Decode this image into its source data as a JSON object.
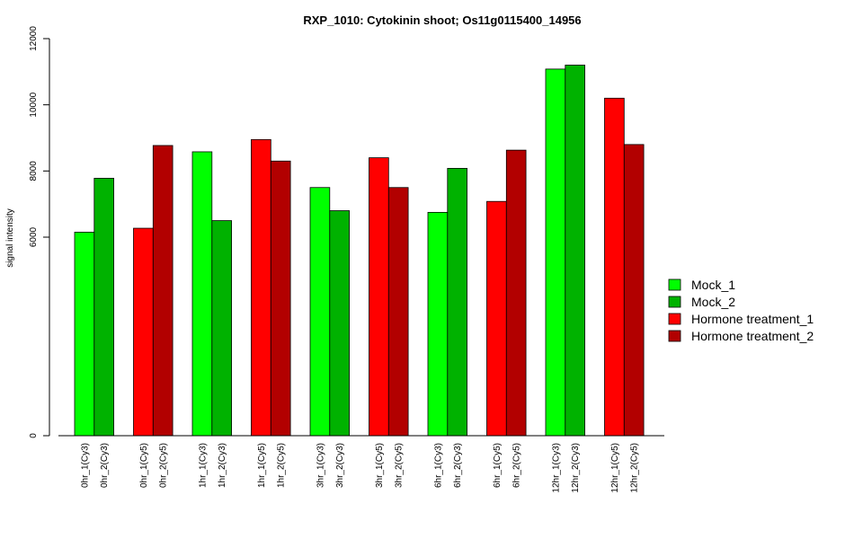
{
  "chart_data": {
    "type": "bar",
    "title": "RXP_1010: Cytokinin shoot; Os11g0115400_14956",
    "ylabel": "signal intensity",
    "xlabel": "",
    "ylim": [
      0,
      12000
    ],
    "y_ticks": [
      0,
      6000,
      8000,
      10000,
      12000
    ],
    "categories": [
      "0hr_1(Cy3)",
      "0hr_2(Cy3)",
      "0hr_1(Cy5)",
      "0hr_2(Cy5)",
      "1hr_1(Cy3)",
      "1hr_2(Cy3)",
      "1hr_1(Cy5)",
      "1hr_2(Cy5)",
      "3hr_1(Cy3)",
      "3hr_2(Cy3)",
      "3hr_1(Cy5)",
      "3hr_2(Cy5)",
      "6hr_1(Cy3)",
      "6hr_2(Cy3)",
      "6hr_1(Cy5)",
      "6hr_2(Cy5)",
      "12hr_1(Cy3)",
      "12hr_2(Cy3)",
      "12hr_1(Cy5)",
      "12hr_2(Cy5)"
    ],
    "values": [
      6150,
      7780,
      6270,
      8770,
      8580,
      6500,
      8950,
      8300,
      7500,
      6800,
      8400,
      7500,
      6750,
      8080,
      7080,
      8630,
      11080,
      11200,
      10200,
      8800
    ],
    "bar_series": [
      0,
      1,
      2,
      3,
      0,
      1,
      2,
      3,
      0,
      1,
      2,
      3,
      0,
      1,
      2,
      3,
      0,
      1,
      2,
      3
    ],
    "series": [
      {
        "name": "Mock_1",
        "color": "#00ff00"
      },
      {
        "name": "Mock_2",
        "color": "#00b200"
      },
      {
        "name": "Hormone treatment_1",
        "color": "#ff0000"
      },
      {
        "name": "Hormone treatment_2",
        "color": "#b20000"
      }
    ],
    "legend_position": "right",
    "grid": false
  }
}
